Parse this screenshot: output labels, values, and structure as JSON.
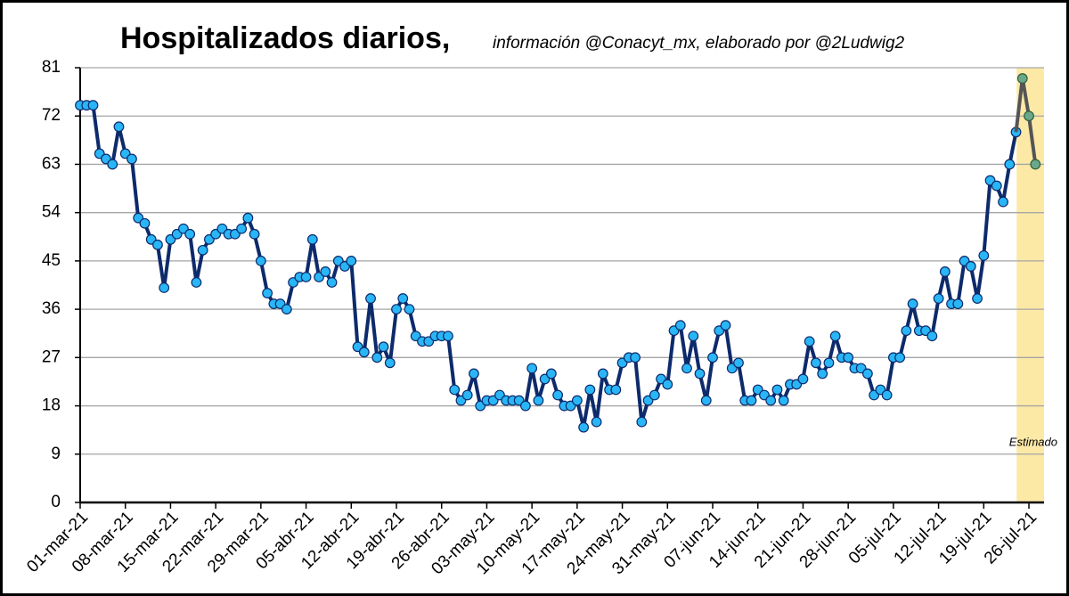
{
  "chart_data": {
    "type": "line",
    "title": "Hospitalizados diarios,",
    "subtitle": "información @Conacyt_mx, elaborado por @2Ludwig2",
    "annotation": "Estimado",
    "highlight_color": "#fde9a6",
    "categories": [
      "01-mar-21",
      null,
      null,
      null,
      null,
      null,
      null,
      "08-mar-21",
      null,
      null,
      null,
      null,
      null,
      null,
      "15-mar-21",
      null,
      null,
      null,
      null,
      null,
      null,
      "22-mar-21",
      null,
      null,
      null,
      null,
      null,
      null,
      "29-mar-21",
      null,
      null,
      null,
      null,
      null,
      null,
      "05-abr-21",
      null,
      null,
      null,
      null,
      null,
      null,
      "12-abr-21",
      null,
      null,
      null,
      null,
      null,
      null,
      "19-abr-21",
      null,
      null,
      null,
      null,
      null,
      null,
      "26-abr-21",
      null,
      null,
      null,
      null,
      null,
      null,
      "03-may-21",
      null,
      null,
      null,
      null,
      null,
      null,
      "10-may-21",
      null,
      null,
      null,
      null,
      null,
      null,
      "17-may-21",
      null,
      null,
      null,
      null,
      null,
      null,
      "24-may-21",
      null,
      null,
      null,
      null,
      null,
      null,
      "31-may-21",
      null,
      null,
      null,
      null,
      null,
      null,
      "07-jun-21",
      null,
      null,
      null,
      null,
      null,
      null,
      "14-jun-21",
      null,
      null,
      null,
      null,
      null,
      null,
      "21-jun-21",
      null,
      null,
      null,
      null,
      null,
      null,
      "28-jun-21",
      null,
      null,
      null,
      null,
      null,
      null,
      "05-jul-21",
      null,
      null,
      null,
      null,
      null,
      null,
      "12-jul-21",
      null,
      null,
      null,
      null,
      null,
      null,
      "19-jul-21",
      null,
      null,
      null,
      null,
      null,
      null,
      "26-jul-21",
      null
    ],
    "series": [
      {
        "color": "#0d2a6b",
        "marker_color": "#29b6f6",
        "values": [
          74,
          74,
          74,
          65,
          64,
          63,
          70,
          65,
          64,
          53,
          52,
          49,
          48,
          40,
          49,
          50,
          51,
          50,
          41,
          47,
          49,
          50,
          51,
          50,
          50,
          51,
          53,
          50,
          45,
          39,
          37,
          37,
          36,
          41,
          42,
          42,
          49,
          42,
          43,
          41,
          45,
          44,
          45,
          29,
          28,
          38,
          27,
          29,
          26,
          36,
          38,
          36,
          31,
          30,
          30,
          31,
          31,
          31,
          21,
          19,
          20,
          24,
          18,
          19,
          19,
          20,
          19,
          19,
          19,
          18,
          25,
          19,
          23,
          24,
          20,
          18,
          18,
          19,
          14,
          21,
          15,
          24,
          21,
          21,
          26,
          27,
          27,
          15,
          19,
          20,
          23,
          22,
          32,
          33,
          25,
          31,
          24,
          19,
          27,
          32,
          33,
          25,
          26,
          19,
          19,
          21,
          20,
          19,
          21,
          19,
          22,
          22,
          23,
          30,
          26,
          24,
          26,
          31,
          27,
          27,
          25,
          25,
          24,
          20,
          21,
          20,
          27,
          27,
          32,
          37,
          32,
          32,
          31,
          38,
          43,
          37,
          37,
          45,
          44,
          38,
          46,
          60,
          59,
          56,
          63,
          69,
          null,
          null,
          null
        ]
      },
      {
        "color": "#555555",
        "marker_color": "#6aa88a",
        "values": [
          null,
          null,
          null,
          null,
          null,
          null,
          null,
          null,
          null,
          null,
          null,
          null,
          null,
          null,
          null,
          null,
          null,
          null,
          null,
          null,
          null,
          null,
          null,
          null,
          null,
          null,
          null,
          null,
          null,
          null,
          null,
          null,
          null,
          null,
          null,
          null,
          null,
          null,
          null,
          null,
          null,
          null,
          null,
          null,
          null,
          null,
          null,
          null,
          null,
          null,
          null,
          null,
          null,
          null,
          null,
          null,
          null,
          null,
          null,
          null,
          null,
          null,
          null,
          null,
          null,
          null,
          null,
          null,
          null,
          null,
          null,
          null,
          null,
          null,
          null,
          null,
          null,
          null,
          null,
          null,
          null,
          null,
          null,
          null,
          null,
          null,
          null,
          null,
          null,
          null,
          null,
          null,
          null,
          null,
          null,
          null,
          null,
          null,
          null,
          null,
          null,
          null,
          null,
          null,
          null,
          null,
          null,
          null,
          null,
          null,
          null,
          null,
          null,
          null,
          null,
          null,
          null,
          null,
          null,
          null,
          null,
          null,
          null,
          null,
          null,
          null,
          null,
          null,
          null,
          null,
          null,
          null,
          null,
          null,
          null,
          null,
          null,
          null,
          null,
          null,
          null,
          null,
          null,
          null,
          null,
          null,
          79,
          72,
          63
        ]
      }
    ],
    "ylim": [
      0,
      81
    ],
    "yticks": [
      0,
      9,
      18,
      27,
      36,
      45,
      54,
      63,
      72,
      81
    ],
    "grid": true
  }
}
